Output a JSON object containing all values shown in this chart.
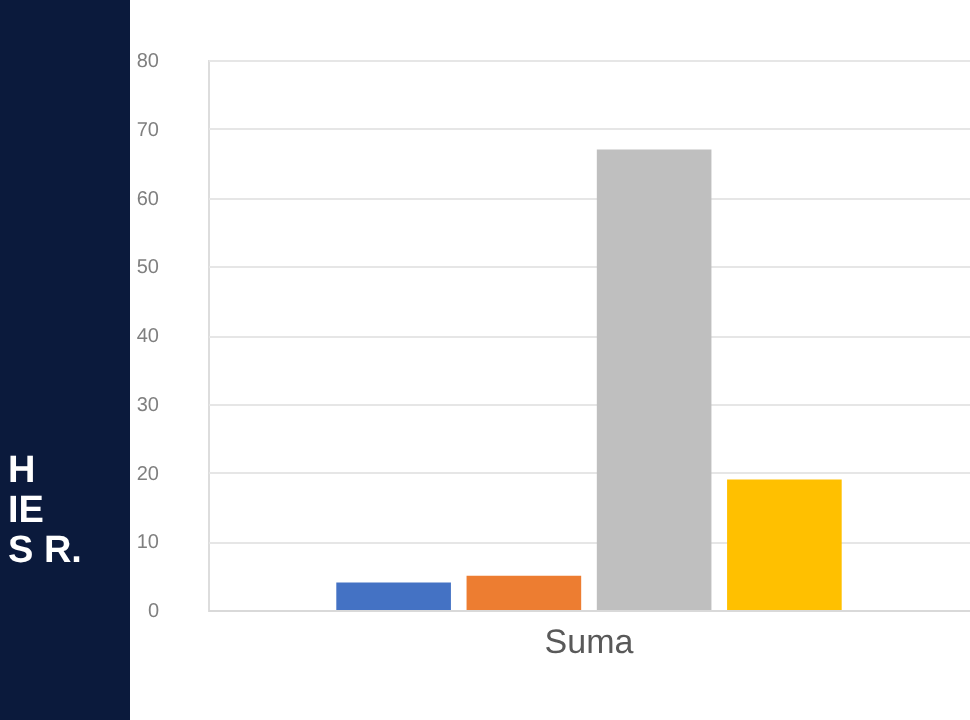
{
  "chart_data": {
    "type": "bar",
    "categories": [
      "Suma"
    ],
    "series": [
      {
        "color": "#4472c4",
        "values": [
          4
        ]
      },
      {
        "color": "#ed7d31",
        "values": [
          5
        ]
      },
      {
        "color": "#bfbfbf",
        "values": [
          67
        ]
      },
      {
        "color": "#ffc000",
        "values": [
          19
        ]
      }
    ],
    "ylim": [
      0,
      80
    ],
    "yticks": [
      0,
      10,
      20,
      30,
      40,
      50,
      60,
      70,
      80
    ],
    "grid": "y",
    "annotations": [
      "H",
      "IE",
      "S R."
    ]
  }
}
